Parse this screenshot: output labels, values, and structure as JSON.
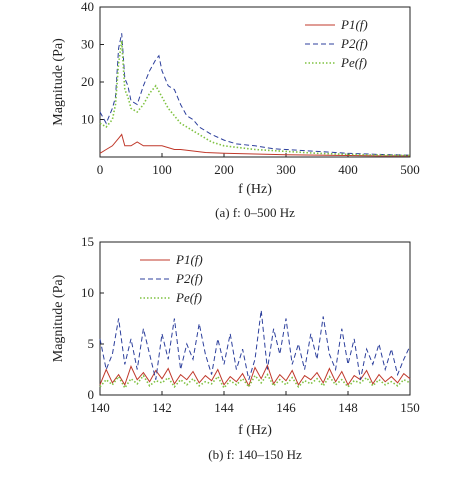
{
  "colors": {
    "P1": "#c0392b",
    "P2": "#2c3f9c",
    "Pe": "#7fc241"
  },
  "chart_data": [
    {
      "type": "line",
      "caption": "(a) f: 0–500 Hz",
      "xlabel": "f (Hz)",
      "ylabel": "Magnitude (Pa)",
      "xlim": [
        0,
        500
      ],
      "ylim": [
        0,
        40
      ],
      "xticks": [
        "0",
        "100",
        "200",
        "300",
        "400",
        "500"
      ],
      "yticks": [
        "10",
        "20",
        "30",
        "40"
      ],
      "legend_position": "top-right",
      "series": [
        {
          "name": "P1(f)",
          "key": "P1",
          "style": "solid",
          "x": [
            0,
            10,
            20,
            30,
            35,
            40,
            50,
            60,
            70,
            80,
            90,
            100,
            110,
            120,
            130,
            140,
            150,
            170,
            200,
            250,
            300,
            350,
            400,
            450,
            500
          ],
          "y": [
            1,
            2,
            3,
            5,
            6,
            3,
            3,
            4,
            3,
            3,
            3,
            3,
            2.5,
            2,
            2,
            1.8,
            1.6,
            1.2,
            1,
            0.8,
            0.6,
            0.5,
            0.4,
            0.3,
            0.3
          ]
        },
        {
          "name": "P2(f)",
          "key": "P2",
          "style": "dashed",
          "x": [
            0,
            10,
            20,
            25,
            30,
            35,
            40,
            45,
            50,
            60,
            70,
            80,
            90,
            95,
            100,
            110,
            120,
            130,
            140,
            150,
            160,
            180,
            200,
            220,
            250,
            280,
            300,
            350,
            400,
            450,
            500
          ],
          "y": [
            12,
            9,
            13,
            16,
            29,
            33,
            21,
            19,
            15,
            14,
            19,
            23,
            26,
            27,
            23,
            19,
            18,
            14,
            11,
            10,
            8,
            6,
            4.5,
            3.5,
            3,
            2.2,
            2,
            1.5,
            1,
            0.7,
            0.5
          ]
        },
        {
          "name": "Pe(f)",
          "key": "Pe",
          "style": "dotted",
          "x": [
            0,
            10,
            20,
            25,
            30,
            35,
            40,
            45,
            50,
            60,
            70,
            80,
            90,
            100,
            110,
            120,
            130,
            140,
            150,
            160,
            180,
            200,
            250,
            300,
            350,
            400,
            450,
            500
          ],
          "y": [
            9,
            8,
            10,
            14,
            25,
            31,
            18,
            16,
            13,
            12,
            14,
            17,
            19,
            16,
            13,
            11,
            9,
            8,
            7,
            6,
            4,
            3,
            2,
            1.5,
            1,
            0.7,
            0.5,
            0.4
          ]
        }
      ]
    },
    {
      "type": "line",
      "caption": "(b) f: 140–150 Hz",
      "xlabel": "f (Hz)",
      "ylabel": "Magnitude (Pa)",
      "xlim": [
        140,
        150
      ],
      "ylim": [
        0,
        15
      ],
      "xticks": [
        "140",
        "142",
        "144",
        "146",
        "148",
        "150"
      ],
      "yticks": [
        "0",
        "5",
        "10",
        "15"
      ],
      "legend_position": "top-left",
      "series": [
        {
          "name": "P1(f)",
          "key": "P1",
          "style": "solid",
          "x": [
            140,
            140.2,
            140.4,
            140.6,
            140.8,
            141,
            141.2,
            141.4,
            141.6,
            141.8,
            142,
            142.2,
            142.4,
            142.6,
            142.8,
            143,
            143.2,
            143.4,
            143.6,
            143.8,
            144,
            144.2,
            144.4,
            144.6,
            144.8,
            145,
            145.2,
            145.4,
            145.6,
            145.8,
            146,
            146.2,
            146.4,
            146.6,
            146.8,
            147,
            147.2,
            147.4,
            147.6,
            147.8,
            148,
            148.2,
            148.4,
            148.6,
            148.8,
            149,
            149.2,
            149.4,
            149.6,
            149.8,
            150
          ],
          "y": [
            1,
            2.5,
            1.2,
            2,
            1,
            2.8,
            1.5,
            2.2,
            1.3,
            2.4,
            1.6,
            2.6,
            1.1,
            2,
            1.5,
            2.3,
            1.2,
            1.9,
            1.4,
            2.5,
            1,
            1.8,
            1.3,
            2.1,
            0.9,
            2.7,
            1.6,
            2.9,
            1.1,
            2,
            1.4,
            2.4,
            1,
            1.9,
            1.5,
            2.2,
            1.2,
            2.6,
            1.3,
            2.3,
            1,
            1.9,
            1.5,
            2.4,
            1.1,
            2,
            1.3,
            1.8,
            1.2,
            2.1,
            1.6
          ]
        },
        {
          "name": "P2(f)",
          "key": "P2",
          "style": "dashed",
          "x": [
            140,
            140.2,
            140.4,
            140.6,
            140.8,
            141,
            141.2,
            141.4,
            141.6,
            141.8,
            142,
            142.2,
            142.4,
            142.6,
            142.8,
            143,
            143.2,
            143.4,
            143.6,
            143.8,
            144,
            144.2,
            144.4,
            144.6,
            144.8,
            145,
            145.2,
            145.4,
            145.6,
            145.8,
            146,
            146.2,
            146.4,
            146.6,
            146.8,
            147,
            147.2,
            147.4,
            147.6,
            147.8,
            148,
            148.2,
            148.4,
            148.6,
            148.8,
            149,
            149.2,
            149.4,
            149.6,
            149.8,
            150
          ],
          "y": [
            5.5,
            2.5,
            4,
            7.5,
            3,
            5.5,
            2.5,
            6.5,
            4,
            1.5,
            6,
            3.5,
            7.5,
            2.5,
            5,
            3.5,
            7,
            4,
            2,
            5.5,
            3,
            6,
            2.5,
            4.5,
            1.5,
            3.5,
            8.3,
            2.5,
            6.5,
            4,
            7.5,
            3,
            5,
            2.5,
            6,
            3.5,
            7.7,
            4,
            2.5,
            6.5,
            3,
            5.5,
            1.5,
            4.5,
            3,
            5,
            2.5,
            4.5,
            2,
            3.5,
            4.8
          ]
        },
        {
          "name": "Pe(f)",
          "key": "Pe",
          "style": "dotted",
          "x": [
            140,
            140.2,
            140.4,
            140.6,
            140.8,
            141,
            141.2,
            141.4,
            141.6,
            141.8,
            142,
            142.2,
            142.4,
            142.6,
            142.8,
            143,
            143.2,
            143.4,
            143.6,
            143.8,
            144,
            144.2,
            144.4,
            144.6,
            144.8,
            145,
            145.2,
            145.4,
            145.6,
            145.8,
            146,
            146.2,
            146.4,
            146.6,
            146.8,
            147,
            147.2,
            147.4,
            147.6,
            147.8,
            148,
            148.2,
            148.4,
            148.6,
            148.8,
            149,
            149.2,
            149.4,
            149.6,
            149.8,
            150
          ],
          "y": [
            0.8,
            1.5,
            1,
            1.8,
            0.7,
            1.6,
            1.1,
            1.9,
            0.9,
            1.4,
            1.2,
            1.7,
            0.8,
            1.5,
            1,
            1.6,
            0.9,
            1.3,
            1.1,
            1.8,
            0.7,
            1.4,
            1,
            1.6,
            0.8,
            1.9,
            1.2,
            2,
            0.9,
            1.5,
            1,
            1.7,
            0.8,
            1.4,
            1.1,
            1.6,
            0.9,
            1.8,
            1,
            1.5,
            0.8,
            1.4,
            1.2,
            1.7,
            0.9,
            1.5,
            1,
            1.3,
            0.9,
            1.5,
            1.2
          ]
        }
      ]
    }
  ]
}
